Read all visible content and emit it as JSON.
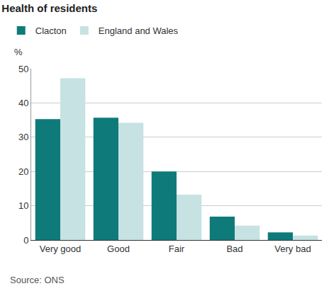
{
  "chart_data": {
    "type": "bar",
    "title": "Health of residents",
    "categories": [
      "Very good",
      "Good",
      "Fair",
      "Bad",
      "Very bad"
    ],
    "series": [
      {
        "name": "Clacton",
        "color": "#0f7a7a",
        "values": [
          35.3,
          35.7,
          20,
          6.8,
          2.2
        ]
      },
      {
        "name": "England and Wales",
        "color": "#c6e2e2",
        "values": [
          47.2,
          34.2,
          13.2,
          4.2,
          1.3
        ]
      }
    ],
    "ylabel": "%",
    "source": "Source: ONS",
    "ylim": [
      0,
      50
    ],
    "yticks": [
      0,
      10,
      20,
      30,
      40,
      50
    ],
    "grid": true,
    "legend": "top left"
  }
}
